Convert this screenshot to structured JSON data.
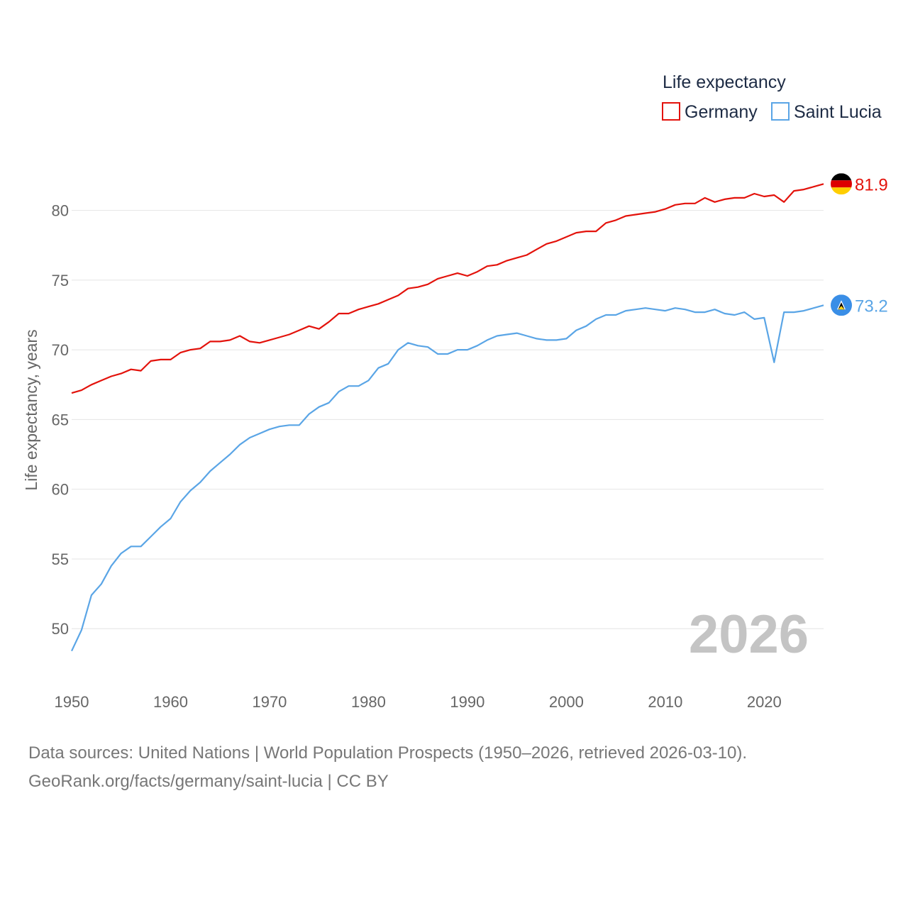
{
  "chart_data": {
    "type": "line",
    "legend_title": "Life expectancy",
    "ylabel": "Life expectancy, years",
    "xlabel": "",
    "ylim": [
      46.5,
      84
    ],
    "xlim": [
      1950,
      2026
    ],
    "yticks": [
      50,
      55,
      60,
      65,
      70,
      75,
      80
    ],
    "xticks": [
      1950,
      1960,
      1970,
      1980,
      1990,
      2000,
      2010,
      2020
    ],
    "current_year_label": "2026",
    "legend_placement": "top-right",
    "series": [
      {
        "name": "Germany",
        "color": "#e3120b",
        "end_label": "81.9",
        "flag_icon": "germany-flag-icon",
        "x": [
          1950,
          1951,
          1952,
          1953,
          1954,
          1955,
          1956,
          1957,
          1958,
          1959,
          1960,
          1961,
          1962,
          1963,
          1964,
          1965,
          1966,
          1967,
          1968,
          1969,
          1970,
          1971,
          1972,
          1973,
          1974,
          1975,
          1976,
          1977,
          1978,
          1979,
          1980,
          1981,
          1982,
          1983,
          1984,
          1985,
          1986,
          1987,
          1988,
          1989,
          1990,
          1991,
          1992,
          1993,
          1994,
          1995,
          1996,
          1997,
          1998,
          1999,
          2000,
          2001,
          2002,
          2003,
          2004,
          2005,
          2006,
          2007,
          2008,
          2009,
          2010,
          2011,
          2012,
          2013,
          2014,
          2015,
          2016,
          2017,
          2018,
          2019,
          2020,
          2021,
          2022,
          2023,
          2024,
          2025,
          2026
        ],
        "values": [
          66.9,
          67.1,
          67.5,
          67.8,
          68.1,
          68.3,
          68.6,
          68.5,
          69.2,
          69.3,
          69.3,
          69.8,
          70.0,
          70.1,
          70.6,
          70.6,
          70.7,
          71.0,
          70.6,
          70.5,
          70.7,
          70.9,
          71.1,
          71.4,
          71.7,
          71.5,
          72.0,
          72.6,
          72.6,
          72.9,
          73.1,
          73.3,
          73.6,
          73.9,
          74.4,
          74.5,
          74.7,
          75.1,
          75.3,
          75.5,
          75.3,
          75.6,
          76.0,
          76.1,
          76.4,
          76.6,
          76.8,
          77.2,
          77.6,
          77.8,
          78.1,
          78.4,
          78.5,
          78.5,
          79.1,
          79.3,
          79.6,
          79.7,
          79.8,
          79.9,
          80.1,
          80.4,
          80.5,
          80.5,
          80.9,
          80.6,
          80.8,
          80.9,
          80.9,
          81.2,
          81.0,
          81.1,
          80.6,
          81.4,
          81.5,
          81.7,
          81.9
        ]
      },
      {
        "name": "Saint Lucia",
        "color": "#5aa5e6",
        "end_label": "73.2",
        "flag_icon": "saint-lucia-flag-icon",
        "x": [
          1950,
          1951,
          1952,
          1953,
          1954,
          1955,
          1956,
          1957,
          1958,
          1959,
          1960,
          1961,
          1962,
          1963,
          1964,
          1965,
          1966,
          1967,
          1968,
          1969,
          1970,
          1971,
          1972,
          1973,
          1974,
          1975,
          1976,
          1977,
          1978,
          1979,
          1980,
          1981,
          1982,
          1983,
          1984,
          1985,
          1986,
          1987,
          1988,
          1989,
          1990,
          1991,
          1992,
          1993,
          1994,
          1995,
          1996,
          1997,
          1998,
          1999,
          2000,
          2001,
          2002,
          2003,
          2004,
          2005,
          2006,
          2007,
          2008,
          2009,
          2010,
          2011,
          2012,
          2013,
          2014,
          2015,
          2016,
          2017,
          2018,
          2019,
          2020,
          2021,
          2022,
          2023,
          2024,
          2025,
          2026
        ],
        "values": [
          48.4,
          49.9,
          52.4,
          53.2,
          54.5,
          55.4,
          55.9,
          55.9,
          56.6,
          57.3,
          57.9,
          59.1,
          59.9,
          60.5,
          61.3,
          61.9,
          62.5,
          63.2,
          63.7,
          64.0,
          64.3,
          64.5,
          64.6,
          64.6,
          65.4,
          65.9,
          66.2,
          67.0,
          67.4,
          67.4,
          67.8,
          68.7,
          69.0,
          70.0,
          70.5,
          70.3,
          70.2,
          69.7,
          69.7,
          70.0,
          70.0,
          70.3,
          70.7,
          71.0,
          71.1,
          71.2,
          71.0,
          70.8,
          70.7,
          70.7,
          70.8,
          71.4,
          71.7,
          72.2,
          72.5,
          72.5,
          72.8,
          72.9,
          73.0,
          72.9,
          72.8,
          73.0,
          72.9,
          72.7,
          72.7,
          72.9,
          72.6,
          72.5,
          72.7,
          72.2,
          72.3,
          69.1,
          72.7,
          72.7,
          72.8,
          73.0,
          73.2
        ]
      }
    ]
  },
  "footer": {
    "line1": "Data sources: United Nations | World Population Prospects (1950–2026, retrieved 2026-03-10).",
    "line2": "GeoRank.org/facts/germany/saint-lucia | CC BY"
  }
}
